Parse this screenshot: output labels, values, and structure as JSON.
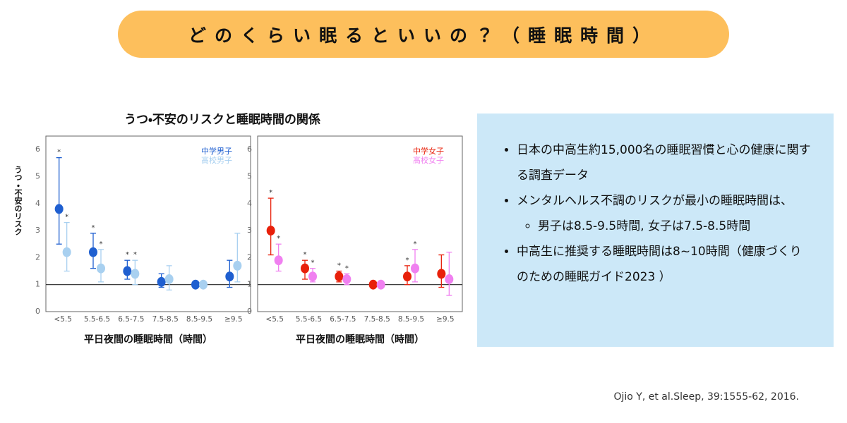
{
  "title": "どのくらい眠るといいの？（睡眠時間）",
  "figure_title": "うつ・不安のリスクと睡眠時間の関係",
  "chart_data": [
    {
      "type": "errorbar",
      "ylabel": "うつ・不安のリスク",
      "xlabel": "平日夜間の睡眠時間（時間）",
      "categories": [
        "<5.5",
        "5.5-6.5",
        "6.5-7.5",
        "7.5-8.5",
        "8.5-9.5",
        "≥9.5"
      ],
      "ylim": [
        0,
        6.5
      ],
      "yticks": [
        0,
        1,
        2,
        3,
        4,
        5,
        6
      ],
      "reference_line": 1,
      "series": [
        {
          "name": "中学男子",
          "color": "#1f5fd0",
          "values": [
            3.8,
            2.2,
            1.5,
            1.1,
            1.0,
            1.3
          ],
          "lower": [
            2.5,
            1.6,
            1.2,
            0.9,
            0.95,
            0.9
          ],
          "upper": [
            5.7,
            2.9,
            1.9,
            1.4,
            1.05,
            1.9
          ],
          "annotations": [
            "*",
            "*",
            "*",
            null,
            null,
            null
          ]
        },
        {
          "name": "高校男子",
          "color": "#a8d0f0",
          "values": [
            2.2,
            1.6,
            1.4,
            1.2,
            1.0,
            1.7
          ],
          "lower": [
            1.5,
            1.1,
            1.0,
            0.8,
            0.95,
            1.1
          ],
          "upper": [
            3.3,
            2.3,
            1.9,
            1.7,
            1.05,
            2.9
          ],
          "annotations": [
            "*",
            "*",
            "*",
            null,
            null,
            null
          ]
        }
      ]
    },
    {
      "type": "errorbar",
      "xlabel": "平日夜間の睡眠時間（時間）",
      "categories": [
        "<5.5",
        "5.5-6.5",
        "6.5-7.5",
        "7.5-8.5",
        "8.5-9.5",
        "≥9.5"
      ],
      "ylim": [
        0,
        6.5
      ],
      "yticks": [
        0,
        1,
        2,
        3,
        4,
        5,
        6
      ],
      "reference_line": 1,
      "series": [
        {
          "name": "中学女子",
          "color": "#e8200a",
          "values": [
            3.0,
            1.6,
            1.3,
            1.0,
            1.3,
            1.4
          ],
          "lower": [
            2.1,
            1.2,
            1.1,
            0.95,
            1.0,
            0.9
          ],
          "upper": [
            4.2,
            1.9,
            1.5,
            1.05,
            1.7,
            2.1
          ],
          "annotations": [
            "*",
            "*",
            "*",
            null,
            "*",
            null
          ]
        },
        {
          "name": "高校女子",
          "color": "#f080f0",
          "values": [
            1.9,
            1.3,
            1.2,
            1.0,
            1.6,
            1.2
          ],
          "lower": [
            1.5,
            1.1,
            1.0,
            0.95,
            1.1,
            0.6
          ],
          "upper": [
            2.5,
            1.6,
            1.4,
            1.05,
            2.3,
            2.2
          ],
          "annotations": [
            "*",
            "*",
            "*",
            null,
            "*",
            null
          ]
        }
      ]
    }
  ],
  "bullets": [
    {
      "text": "日本の中高生約15,000名の睡眠習慣と心の健康に関する調査データ"
    },
    {
      "text": "メンタルヘルス不調のリスクが最小の睡眠時間は、",
      "sub": [
        "男子は8.5-9.5時間, 女子は7.5-8.5時間"
      ]
    },
    {
      "text": "中高生に推奨する睡眠時間は8~10時間（健康づくりのための睡眠ガイド2023 ）"
    }
  ],
  "citation": "Ojio Y, et al.Sleep, 39:1555-62, 2016."
}
